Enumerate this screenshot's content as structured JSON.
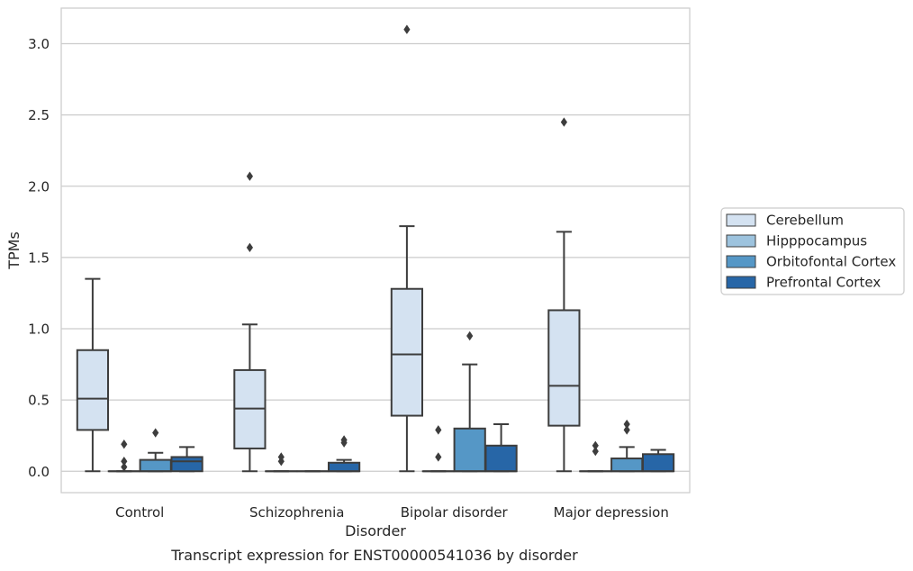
{
  "chart_data": {
    "type": "box",
    "caption": "Transcript expression for ENST00000541036 by disorder",
    "xlabel": "Disorder",
    "ylabel": "TPMs",
    "ylim": [
      -0.15,
      3.25
    ],
    "yticks": [
      "0.0",
      "0.5",
      "1.0",
      "1.5",
      "2.0",
      "2.5",
      "3.0"
    ],
    "grid": true,
    "legend_position": "right",
    "categories": [
      "Control",
      "Schizophrenia",
      "Bipolar disorder",
      "Major depression"
    ],
    "series": [
      {
        "name": "Cerebellum",
        "color": "#d4e2f1",
        "boxes": [
          {
            "min": 0.0,
            "q1": 0.29,
            "median": 0.51,
            "q3": 0.85,
            "max": 1.35,
            "outliers": []
          },
          {
            "min": 0.0,
            "q1": 0.16,
            "median": 0.44,
            "q3": 0.71,
            "max": 1.03,
            "outliers": [
              1.57,
              2.07
            ]
          },
          {
            "min": 0.0,
            "q1": 0.39,
            "median": 0.82,
            "q3": 1.28,
            "max": 1.72,
            "outliers": [
              3.1
            ]
          },
          {
            "min": 0.0,
            "q1": 0.32,
            "median": 0.6,
            "q3": 1.13,
            "max": 1.68,
            "outliers": [
              2.45
            ]
          }
        ]
      },
      {
        "name": "Hipppocampus",
        "color": "#9dc3de",
        "boxes": [
          {
            "min": 0.0,
            "q1": 0.0,
            "median": 0.0,
            "q3": 0.0,
            "max": 0.0,
            "outliers": [
              0.03,
              0.07,
              0.19
            ]
          },
          {
            "min": 0.0,
            "q1": 0.0,
            "median": 0.0,
            "q3": 0.0,
            "max": 0.0,
            "outliers": [
              0.07,
              0.1
            ]
          },
          {
            "min": 0.0,
            "q1": 0.0,
            "median": 0.0,
            "q3": 0.0,
            "max": 0.0,
            "outliers": [
              0.1,
              0.29
            ]
          },
          {
            "min": 0.0,
            "q1": 0.0,
            "median": 0.0,
            "q3": 0.0,
            "max": 0.0,
            "outliers": [
              0.14,
              0.18
            ]
          }
        ]
      },
      {
        "name": "Orbitofontal Cortex",
        "color": "#5597c6",
        "boxes": [
          {
            "min": 0.0,
            "q1": 0.0,
            "median": 0.0,
            "q3": 0.08,
            "max": 0.13,
            "outliers": [
              0.27
            ]
          },
          {
            "min": 0.0,
            "q1": 0.0,
            "median": 0.0,
            "q3": 0.0,
            "max": 0.0,
            "outliers": []
          },
          {
            "min": 0.0,
            "q1": 0.0,
            "median": 0.0,
            "q3": 0.3,
            "max": 0.75,
            "outliers": [
              0.95
            ]
          },
          {
            "min": 0.0,
            "q1": 0.0,
            "median": 0.0,
            "q3": 0.09,
            "max": 0.17,
            "outliers": [
              0.29,
              0.33
            ]
          }
        ]
      },
      {
        "name": "Prefrontal Cortex",
        "color": "#2766a7",
        "boxes": [
          {
            "min": 0.0,
            "q1": 0.0,
            "median": 0.07,
            "q3": 0.1,
            "max": 0.17,
            "outliers": []
          },
          {
            "min": 0.0,
            "q1": 0.0,
            "median": 0.0,
            "q3": 0.06,
            "max": 0.08,
            "outliers": [
              0.2,
              0.22
            ]
          },
          {
            "min": 0.0,
            "q1": 0.0,
            "median": 0.0,
            "q3": 0.18,
            "max": 0.33,
            "outliers": []
          },
          {
            "min": 0.0,
            "q1": 0.0,
            "median": 0.0,
            "q3": 0.12,
            "max": 0.15,
            "outliers": []
          }
        ]
      }
    ]
  }
}
